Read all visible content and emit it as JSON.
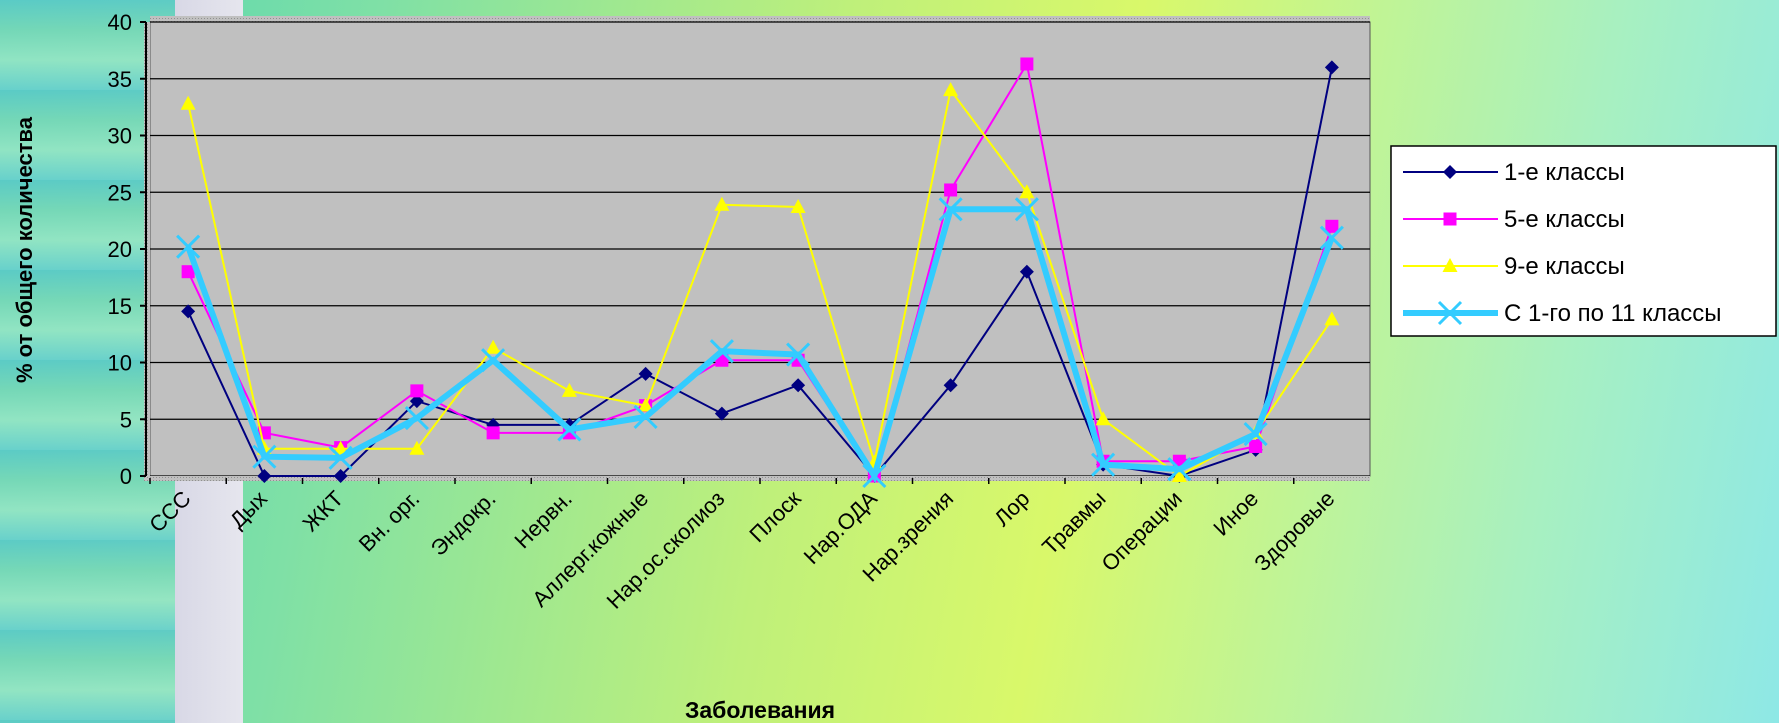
{
  "chart_data": {
    "type": "line",
    "title": "",
    "xlabel": "Заболевания",
    "ylabel": "% от общего количества",
    "ylim": [
      0,
      40
    ],
    "yticks": [
      0,
      5,
      10,
      15,
      20,
      25,
      30,
      35,
      40
    ],
    "grid": true,
    "legend_position": "right",
    "categories": [
      "ССС",
      "Дых",
      "ЖКТ",
      "Вн. орг.",
      "Эндокр.",
      "Нервн.",
      "Аллерг.кожные",
      "Нар.ос.сколиоз",
      "Плоск",
      "Нар.ОДА",
      "Нар.зрения",
      "Лор",
      "Травмы",
      "Операции",
      "Иное",
      "Здоровые"
    ],
    "series": [
      {
        "name": "1-е классы",
        "color": "#000080",
        "marker": "diamond",
        "values": [
          14.5,
          0,
          0,
          6.6,
          4.5,
          4.5,
          9,
          5.5,
          8,
          0,
          8,
          18,
          1,
          0,
          2.3,
          36
        ]
      },
      {
        "name": "5-е классы",
        "color": "#ff00ff",
        "marker": "square",
        "values": [
          18,
          3.8,
          2.5,
          7.5,
          3.8,
          3.8,
          6.2,
          10.2,
          10.2,
          0,
          25.2,
          36.3,
          1.3,
          1.3,
          2.6,
          22
        ]
      },
      {
        "name": "9-е классы",
        "color": "#ffff00",
        "marker": "triangle",
        "values": [
          32.8,
          2.4,
          2.4,
          2.4,
          11.3,
          7.5,
          6.2,
          23.9,
          23.7,
          1.2,
          34,
          25,
          5,
          0,
          3.8,
          13.8
        ]
      },
      {
        "name": "С 1-го по 11 классы",
        "color": "#33ccff",
        "marker": "x",
        "values": [
          20.2,
          1.7,
          1.6,
          5.1,
          10.2,
          4.1,
          5.2,
          11,
          10.7,
          0,
          23.5,
          23.5,
          1,
          0.6,
          3.7,
          21
        ]
      }
    ]
  }
}
